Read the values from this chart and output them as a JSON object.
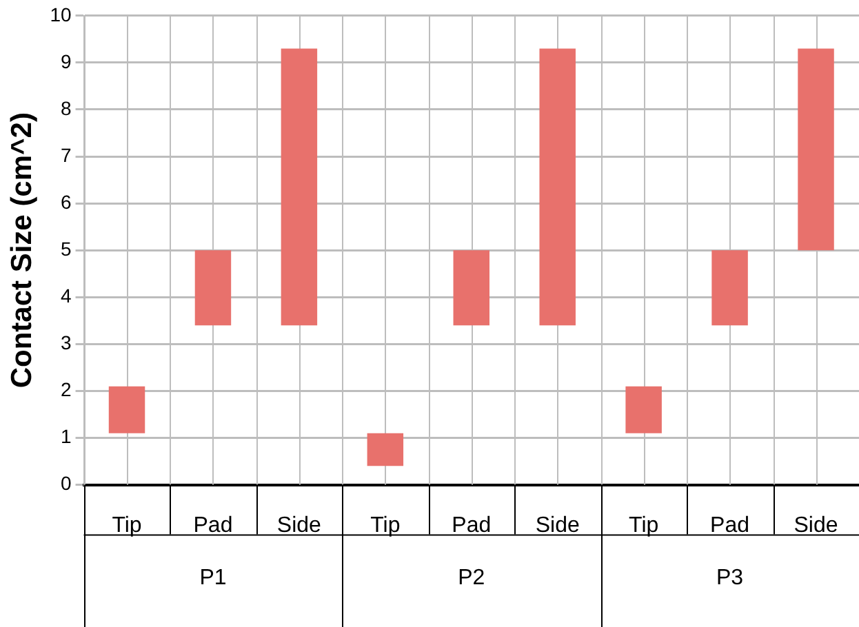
{
  "chart_data": {
    "type": "bar",
    "ylabel": "Contact Size (cm^2)",
    "categories": [
      "Tip",
      "Pad",
      "Side",
      "Tip",
      "Pad",
      "Side",
      "Tip",
      "Pad",
      "Side"
    ],
    "values": [
      1.0,
      1.6,
      5.9,
      0.7,
      1.6,
      5.9,
      1.0,
      1.6,
      4.3
    ],
    "base": [
      1.1,
      3.4,
      3.4,
      0.4,
      3.4,
      3.4,
      1.1,
      3.4,
      5.0
    ],
    "color": "#e8716c",
    "annotations": [
      "P1",
      "P2",
      "P3"
    ],
    "ylim": [
      0,
      10
    ],
    "yticks": [
      0,
      1,
      2,
      3,
      4,
      5,
      6,
      7,
      8,
      9,
      10
    ],
    "grid": true,
    "legend": false
  }
}
